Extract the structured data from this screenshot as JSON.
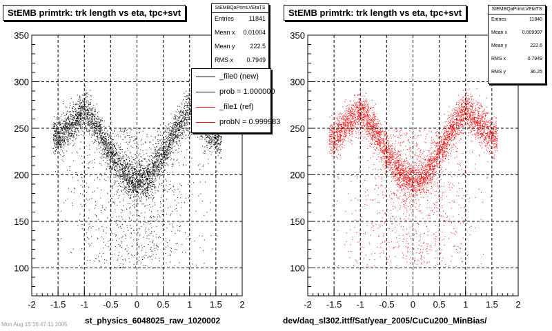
{
  "chart_data": [
    {
      "type": "scatter",
      "title": "StEMB primtrk: trk length vs eta, tpc+svt",
      "point_color": "#000000",
      "xlim": [
        -2,
        2
      ],
      "ylim": [
        70,
        350
      ],
      "xticks": [
        "-2",
        "-1.5",
        "-1",
        "-0.5",
        "0",
        "0.5",
        "1",
        "1.5",
        "2"
      ],
      "yticks": [
        "100",
        "150",
        "200",
        "250",
        "300",
        "350"
      ],
      "grid": true,
      "stats": {
        "name": "StEMBQaPrimLVEtaTS",
        "rows": [
          {
            "label": "Entries",
            "value": "11841"
          },
          {
            "label": "Mean x",
            "value": "0.01004"
          },
          {
            "label": "Mean y",
            "value": "222.5"
          },
          {
            "label": "RMS x",
            "value": "0.7949"
          }
        ]
      },
      "legend": {
        "placement": "top-right",
        "entries": [
          {
            "label": "_file0 (new)",
            "color": "#000000"
          },
          {
            "label": "prob = 1.000000",
            "color": "#000000"
          },
          {
            "label": "_file1 (ref)",
            "color": "#ff0000"
          },
          {
            "label": "probN = 0.999983",
            "color": "#ff0000"
          }
        ]
      },
      "footer": "st_physics_6048025_raw_1020002",
      "series": [
        {
          "values_description_x_y_pairs": [
            [
              -1.5,
              240
            ],
            [
              -1.2,
              258
            ],
            [
              -1.0,
              270
            ],
            [
              -0.9,
              262
            ],
            [
              -0.7,
              245
            ],
            [
              -0.55,
              228
            ],
            [
              -0.35,
              210
            ],
            [
              -0.2,
              198
            ],
            [
              0.0,
              193
            ],
            [
              0.2,
              198
            ],
            [
              0.35,
              210
            ],
            [
              0.55,
              228
            ],
            [
              0.7,
              245
            ],
            [
              0.9,
              262
            ],
            [
              1.0,
              270
            ],
            [
              1.2,
              258
            ],
            [
              1.5,
              240
            ]
          ]
        }
      ]
    },
    {
      "type": "scatter",
      "title": "StEMB primtrk: trk length vs eta, tpc+svt",
      "point_color": "#ff0000",
      "xlim": [
        -2,
        2
      ],
      "ylim": [
        70,
        350
      ],
      "xticks": [
        "-2",
        "-1.5",
        "-1",
        "-0.5",
        "0",
        "0.5",
        "1",
        "1.5",
        "2"
      ],
      "yticks": [
        "100",
        "150",
        "200",
        "250",
        "300",
        "350"
      ],
      "grid": true,
      "stats": {
        "name": "StEMBQaPrimLVEtaTS",
        "rows": [
          {
            "label": "Entries",
            "value": "11840"
          },
          {
            "label": "Mean x",
            "value": "0.009997"
          },
          {
            "label": "Mean y",
            "value": "222.6"
          },
          {
            "label": "RMS x",
            "value": "0.7949"
          },
          {
            "label": "RMS y",
            "value": "36.25"
          }
        ]
      },
      "footer": "dev/daq_sl302.ittf/Sat/year_2005/CuCu200_MinBias/",
      "series": [
        {
          "values_description_x_y_pairs": [
            [
              -1.5,
              240
            ],
            [
              -1.2,
              258
            ],
            [
              -1.0,
              270
            ],
            [
              -0.9,
              262
            ],
            [
              -0.7,
              245
            ],
            [
              -0.55,
              228
            ],
            [
              -0.35,
              210
            ],
            [
              -0.2,
              198
            ],
            [
              0.0,
              193
            ],
            [
              0.2,
              198
            ],
            [
              0.35,
              210
            ],
            [
              0.55,
              228
            ],
            [
              0.7,
              245
            ],
            [
              0.9,
              262
            ],
            [
              1.0,
              270
            ],
            [
              1.2,
              258
            ],
            [
              1.5,
              240
            ]
          ]
        }
      ]
    }
  ],
  "corner_note": "Mon Aug 15 16:47:11 2005"
}
